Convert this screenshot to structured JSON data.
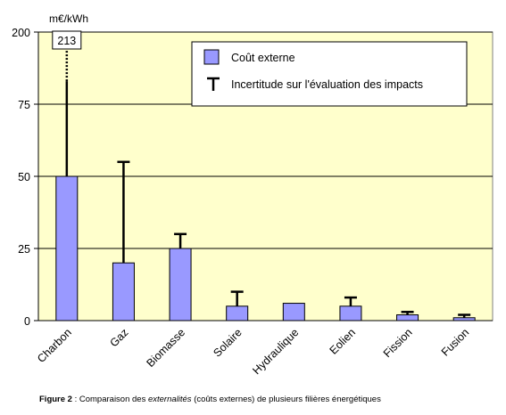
{
  "chart_data": {
    "type": "bar",
    "ylabel": "m€/kWh",
    "ylim": [
      0,
      200
    ],
    "yticks": [
      0,
      25,
      50,
      75,
      200
    ],
    "categories": [
      "Charbon",
      "Gaz",
      "Biomasse",
      "Solaire",
      "Hydraulique",
      "Eolien",
      "Fission",
      "Fusion"
    ],
    "series": [
      {
        "name": "Coût externe",
        "values": [
          50,
          20,
          25,
          5,
          6,
          5,
          2,
          1
        ]
      }
    ],
    "error_upper": [
      213,
      55,
      30,
      10,
      6,
      8,
      3,
      2
    ],
    "error_label": "Incertitude sur l'évaluation des impacts",
    "annotation": "213",
    "colors": {
      "bar": "#9999FF",
      "plot_bg": "#FFFFCC",
      "bar_edge": "#000000"
    },
    "grid": true,
    "legend_position": "top-right"
  },
  "caption": {
    "label": "Figure 2",
    "sep": " : Comparaison des ",
    "italic": "externalités",
    "rest": " (coûts externes) de plusieurs filières énergétiques"
  }
}
